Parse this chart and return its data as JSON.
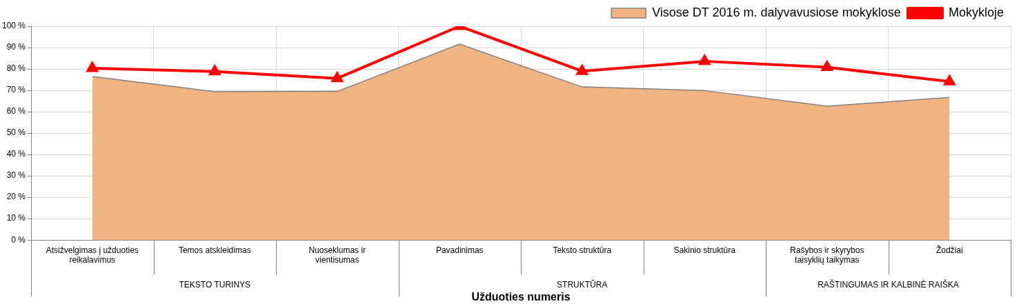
{
  "chart_data": {
    "type": "area",
    "categories": [
      "Atsižvelgimas į užduoties reikalavimus",
      "Temos atskleidimas",
      "Nuoseklumas ir vientisumas",
      "Pavadinimas",
      "Teksto struktūra",
      "Sakinio struktūra",
      "Rašybos ir skyrybos taisyklių taikymas",
      "Žodžiai"
    ],
    "series": [
      {
        "name": "Visose DT 2016 m. dalyvavusiose mokyklose",
        "color": "#f0b482",
        "values": [
          76.5,
          69.4,
          69.5,
          91.6,
          71.6,
          69.9,
          62.6,
          66.7
        ]
      },
      {
        "name": "Mokykloje",
        "type": "line",
        "color": "#ff0000",
        "marker": "triangle",
        "values": [
          80.3,
          78.8,
          75.6,
          100,
          79.0,
          83.6,
          80.8,
          74.1
        ]
      }
    ],
    "xlabel": "Užduoties numeris",
    "annotations": [
      "TEKSTO TURINYS",
      "STRUKTŪRA",
      "RAŠTINGUMAS IR KALBINĖ RAIŠKA"
    ],
    "ylim": [
      0,
      100
    ],
    "yticks": [
      {
        "value": 0,
        "label": "0 %"
      },
      {
        "value": 10,
        "label": "10 %"
      },
      {
        "value": 20,
        "label": "20 %"
      },
      {
        "value": 30,
        "label": "30 %"
      },
      {
        "value": 40,
        "label": "40 %"
      },
      {
        "value": 50,
        "label": "50 %"
      },
      {
        "value": 60,
        "label": "60 %"
      },
      {
        "value": 70,
        "label": "70 %"
      },
      {
        "value": 80,
        "label": "80 %"
      },
      {
        "value": 90,
        "label": "90 %"
      },
      {
        "value": 100,
        "label": "100 %"
      }
    ],
    "grid": true,
    "legend": "top right"
  }
}
